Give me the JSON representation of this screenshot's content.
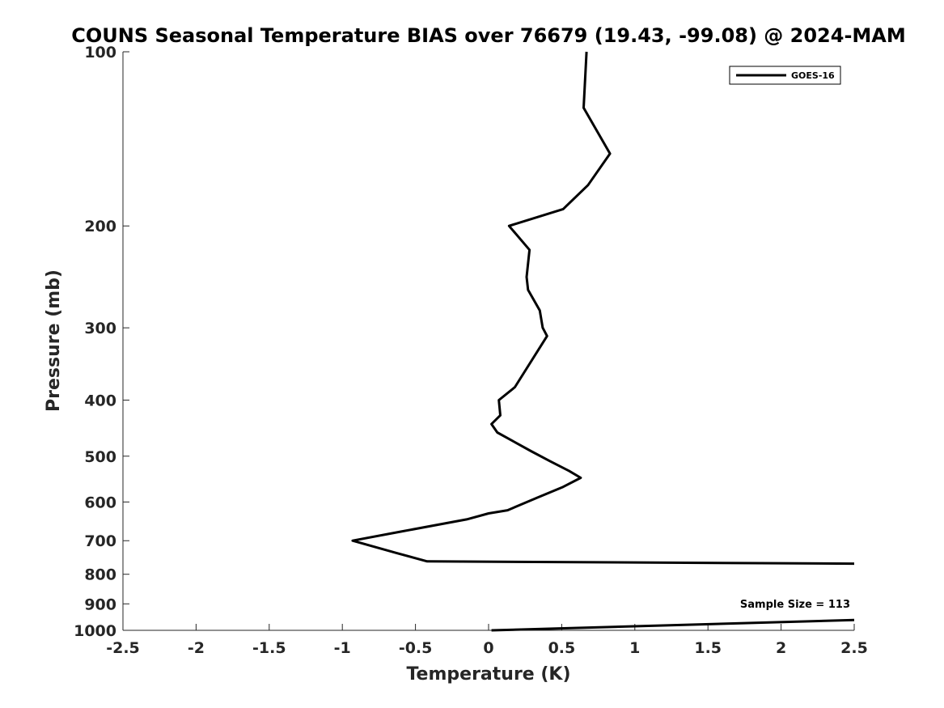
{
  "chart_data": {
    "type": "line",
    "title": "COUNS Seasonal Temperature BIAS over 76679 (19.43, -99.08) @ 2024-MAM",
    "xlabel": "Temperature (K)",
    "ylabel": "Pressure (mb)",
    "xlim": [
      -2.5,
      2.5
    ],
    "ylim": [
      100,
      1000
    ],
    "y_scale": "log",
    "y_reversed": true,
    "x_ticks": [
      "-2.5",
      "-2",
      "-1.5",
      "-1",
      "-0.5",
      "0",
      "0.5",
      "1",
      "1.5",
      "2",
      "2.5"
    ],
    "y_ticks": [
      "100",
      "200",
      "300",
      "400",
      "500",
      "600",
      "700",
      "800",
      "900",
      "1000"
    ],
    "legend": {
      "position": "top-right",
      "entries": [
        "GOES-16"
      ]
    },
    "annotation": "Sample Size = 113",
    "series": [
      {
        "name": "GOES-16",
        "color": "#000000",
        "points": [
          [
            0.67,
            100
          ],
          [
            0.65,
            125
          ],
          [
            0.83,
            150
          ],
          [
            0.68,
            170
          ],
          [
            0.51,
            187
          ],
          [
            0.14,
            200
          ],
          [
            0.28,
            220
          ],
          [
            0.26,
            245
          ],
          [
            0.27,
            258
          ],
          [
            0.35,
            280
          ],
          [
            0.37,
            300
          ],
          [
            0.4,
            310
          ],
          [
            0.18,
            380
          ],
          [
            0.07,
            400
          ],
          [
            0.08,
            425
          ],
          [
            0.02,
            440
          ],
          [
            0.06,
            455
          ],
          [
            0.29,
            490
          ],
          [
            0.42,
            510
          ],
          [
            0.55,
            530
          ],
          [
            0.63,
            545
          ],
          [
            0.51,
            565
          ],
          [
            0.33,
            590
          ],
          [
            0.13,
            620
          ],
          [
            0.0,
            628
          ],
          [
            -0.15,
            643
          ],
          [
            -0.6,
            675
          ],
          [
            -0.93,
            700
          ],
          [
            -0.8,
            715
          ],
          [
            -0.63,
            735
          ],
          [
            -0.42,
            760
          ],
          [
            2.5,
            767
          ]
        ]
      },
      {
        "name": "",
        "color": "#000000",
        "points": [
          [
            0.02,
            1000
          ],
          [
            2.5,
            960
          ]
        ]
      }
    ]
  }
}
